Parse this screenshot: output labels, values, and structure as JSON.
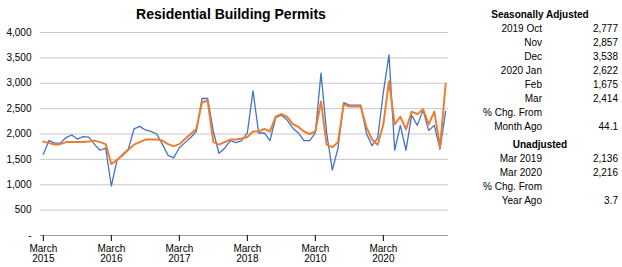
{
  "chart_data": {
    "type": "line",
    "title": "Residential Building Permits",
    "categories": [
      "March\n2015",
      null,
      null,
      null,
      null,
      null,
      null,
      null,
      null,
      null,
      null,
      null,
      "March\n2016",
      null,
      null,
      null,
      null,
      null,
      null,
      null,
      null,
      null,
      null,
      null,
      "March\n2017",
      null,
      null,
      null,
      null,
      null,
      null,
      null,
      null,
      null,
      null,
      null,
      "March\n2018",
      null,
      null,
      null,
      null,
      null,
      null,
      null,
      null,
      null,
      null,
      null,
      "March\n2010",
      null,
      null,
      null,
      null,
      null,
      null,
      null,
      null,
      null,
      null,
      null,
      "March\n2020",
      null,
      null,
      null,
      null,
      null,
      null,
      null,
      null,
      null,
      null,
      null
    ],
    "series": [
      {
        "color": "#4472C4",
        "values": [
          1600,
          1870,
          1820,
          1820,
          1930,
          1980,
          1900,
          1950,
          1940,
          1800,
          1680,
          1720,
          975,
          1480,
          1600,
          1700,
          2100,
          2150,
          2080,
          2050,
          2000,
          1800,
          1580,
          1530,
          1730,
          1830,
          1930,
          2050,
          2700,
          2700,
          2050,
          1620,
          1720,
          1870,
          1830,
          1870,
          2020,
          2850,
          2020,
          2020,
          1870,
          2320,
          2370,
          2280,
          2120,
          2020,
          1870,
          1870,
          2020,
          3200,
          2020,
          1290,
          1720,
          2620,
          2570,
          2570,
          2570,
          2020,
          1770,
          1920,
          2820,
          3560,
          1680,
          2170,
          1680,
          2370,
          2170,
          2470,
          2070,
          2170,
          1700,
          2450
        ]
      },
      {
        "color": "#ED7D31",
        "values": [
          1850,
          1820,
          1790,
          1800,
          1840,
          1840,
          1840,
          1840,
          1850,
          1870,
          1840,
          1800,
          1410,
          1490,
          1580,
          1690,
          1790,
          1840,
          1890,
          1890,
          1890,
          1870,
          1800,
          1760,
          1800,
          1900,
          2000,
          2100,
          2620,
          2660,
          1840,
          1790,
          1840,
          1890,
          1890,
          1910,
          1940,
          2050,
          2050,
          2100,
          2050,
          2340,
          2390,
          2340,
          2200,
          2140,
          2050,
          2000,
          2050,
          2640,
          1790,
          1740,
          1840,
          2590,
          2540,
          2540,
          2540,
          2140,
          1890,
          1790,
          2190,
          3040,
          2190,
          2340,
          2090,
          2440,
          2390,
          2490,
          2190,
          2440,
          1740,
          2990
        ]
      }
    ],
    "ylim": [
      0,
      4000
    ],
    "yticks": [
      {
        "value": 0,
        "label": "-"
      },
      500,
      {
        "value": 1000,
        "label": "1,000"
      },
      {
        "value": 1500,
        "label": "1,500"
      },
      {
        "value": 2000,
        "label": "2,000"
      },
      {
        "value": 2500,
        "label": "2,500"
      },
      {
        "value": 3000,
        "label": "3,000"
      },
      {
        "value": 3500,
        "label": "3,500"
      },
      {
        "value": 4000,
        "label": "4,000"
      }
    ],
    "grid": true,
    "annotations": [
      {
        "title": "Seasonally Adjusted",
        "rows": [
          [
            "2019 Oct",
            "2,777"
          ],
          [
            "Nov",
            "2,857"
          ],
          [
            "Dec",
            "3,538"
          ],
          [
            "2020 Jan",
            "2,622"
          ],
          [
            "Feb",
            "1,675"
          ],
          [
            "Mar",
            "2,414"
          ],
          [
            "% Chg. From"
          ],
          [
            "Month Ago",
            "44.1"
          ]
        ]
      },
      {
        "title": "Unadjusted",
        "rows": [
          [
            "Mar 2019",
            "2,136"
          ],
          [
            "Mar 2020",
            "2,216"
          ],
          [
            "% Chg. From"
          ],
          [
            "Year Ago",
            "3.7"
          ]
        ]
      }
    ]
  }
}
